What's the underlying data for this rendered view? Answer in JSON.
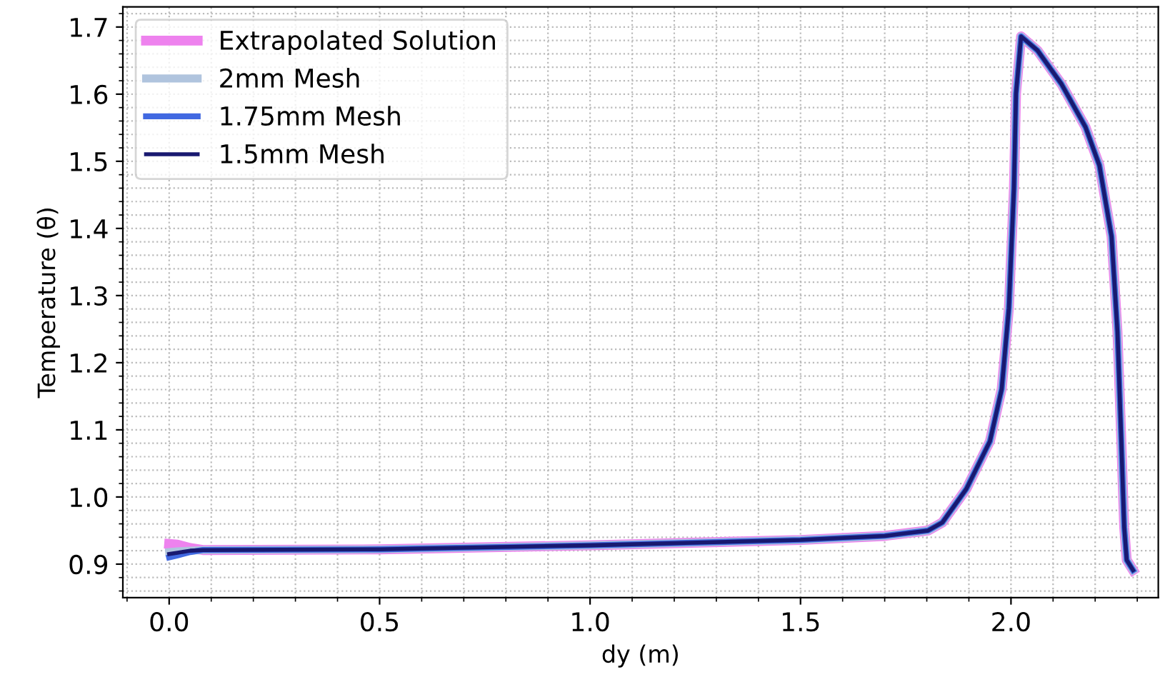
{
  "chart_data": {
    "type": "line",
    "xlabel": "dy (m)",
    "ylabel": "Temperature (θ)",
    "x": [
      0.0,
      0.02,
      0.05,
      0.08,
      0.5,
      1.0,
      1.5,
      1.7,
      1.803,
      1.837,
      1.894,
      1.95,
      1.978,
      1.995,
      2.007,
      2.012,
      2.024,
      2.063,
      2.12,
      2.177,
      2.21,
      2.239,
      2.253,
      2.261,
      2.269,
      2.275,
      2.29
    ],
    "series": [
      {
        "name": "Extrapolated Solution",
        "color": "#ee82ee",
        "values": [
          0.93,
          0.929,
          0.924,
          0.921,
          0.922,
          0.928,
          0.936,
          0.942,
          0.95,
          0.962,
          1.012,
          1.083,
          1.161,
          1.281,
          1.459,
          1.601,
          1.686,
          1.665,
          1.615,
          1.551,
          1.494,
          1.388,
          1.246,
          1.104,
          0.955,
          0.906,
          0.891
        ]
      },
      {
        "name": "2mm Mesh",
        "color": "#b0c4de",
        "values": [
          0.918,
          0.919,
          0.92,
          0.921,
          0.922,
          0.928,
          0.936,
          0.942,
          0.95,
          0.962,
          1.012,
          1.083,
          1.161,
          1.281,
          1.459,
          1.601,
          1.686,
          1.665,
          1.615,
          1.551,
          1.494,
          1.388,
          1.246,
          1.104,
          0.955,
          0.906,
          0.891
        ]
      },
      {
        "name": "1.75mm Mesh",
        "color": "#4169e1",
        "values": [
          0.91,
          0.913,
          0.918,
          0.921,
          0.922,
          0.928,
          0.936,
          0.942,
          0.95,
          0.962,
          1.012,
          1.083,
          1.161,
          1.281,
          1.459,
          1.601,
          1.686,
          1.665,
          1.615,
          1.551,
          1.494,
          1.388,
          1.246,
          1.104,
          0.955,
          0.906,
          0.891
        ]
      },
      {
        "name": "1.5mm Mesh",
        "color": "#191970",
        "values": [
          0.915,
          0.917,
          0.92,
          0.921,
          0.922,
          0.928,
          0.936,
          0.942,
          0.95,
          0.962,
          1.012,
          1.083,
          1.161,
          1.281,
          1.459,
          1.601,
          1.686,
          1.665,
          1.615,
          1.551,
          1.494,
          1.388,
          1.246,
          1.104,
          0.955,
          0.906,
          0.891
        ]
      }
    ],
    "xlim": [
      -0.11,
      2.35
    ],
    "xticks": [
      {
        "value": 0.0,
        "label": "0.0"
      },
      0.5,
      {
        "value": 1.0,
        "label": "1.0"
      },
      1.5,
      {
        "value": 2.0,
        "label": "2.0"
      }
    ],
    "ylim": [
      0.85,
      1.73
    ],
    "yticks": [
      0.9,
      {
        "value": 1.0,
        "label": "1.0"
      },
      1.1,
      1.2,
      1.3,
      1.4,
      1.5,
      1.6,
      1.7
    ],
    "grid": true,
    "legend": "top left",
    "line_style": "solid",
    "marker": "none"
  }
}
